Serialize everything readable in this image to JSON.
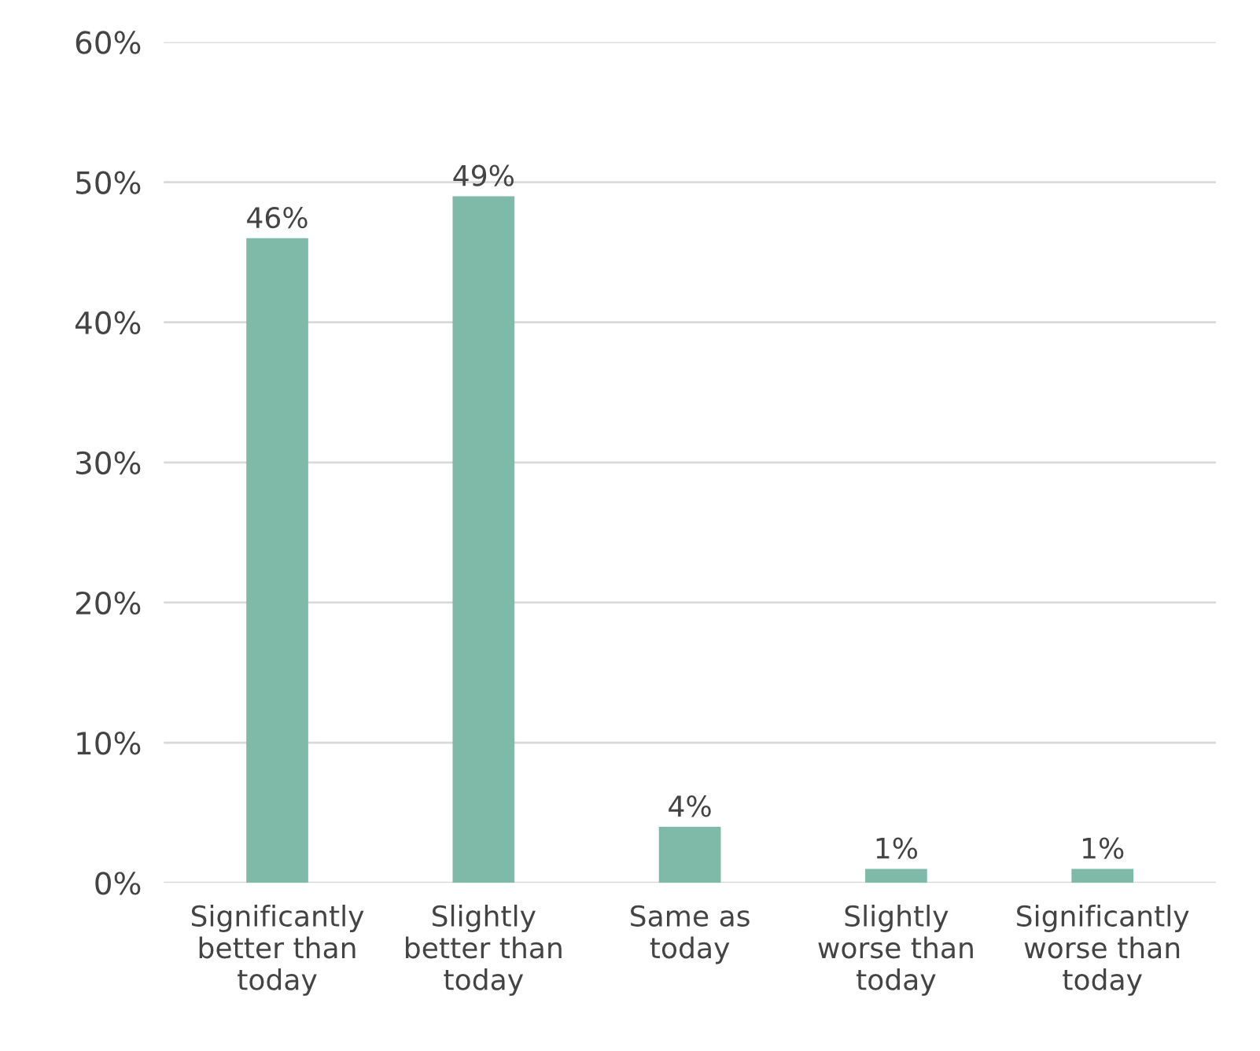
{
  "chart_data": {
    "type": "bar",
    "categories": [
      "Significantly\nbetter than\ntoday",
      "Slightly\nbetter than\ntoday",
      "Same as\ntoday",
      "Slightly\nworse than\ntoday",
      "Significantly\nworse than\ntoday"
    ],
    "values": [
      46,
      49,
      4,
      1,
      1
    ],
    "value_labels": [
      "46%",
      "49%",
      "4%",
      "1%",
      "1%"
    ],
    "color": "#7fb9a8",
    "ylim": [
      0,
      60
    ],
    "yticks": [
      {
        "value": 0,
        "label": "0%"
      },
      {
        "value": 10,
        "label": "10%"
      },
      {
        "value": 20,
        "label": "20%"
      },
      {
        "value": 30,
        "label": "30%"
      },
      {
        "value": 40,
        "label": "40%"
      },
      {
        "value": 50,
        "label": "50%"
      },
      {
        "value": 60,
        "label": "60%"
      }
    ],
    "grid": "y"
  }
}
